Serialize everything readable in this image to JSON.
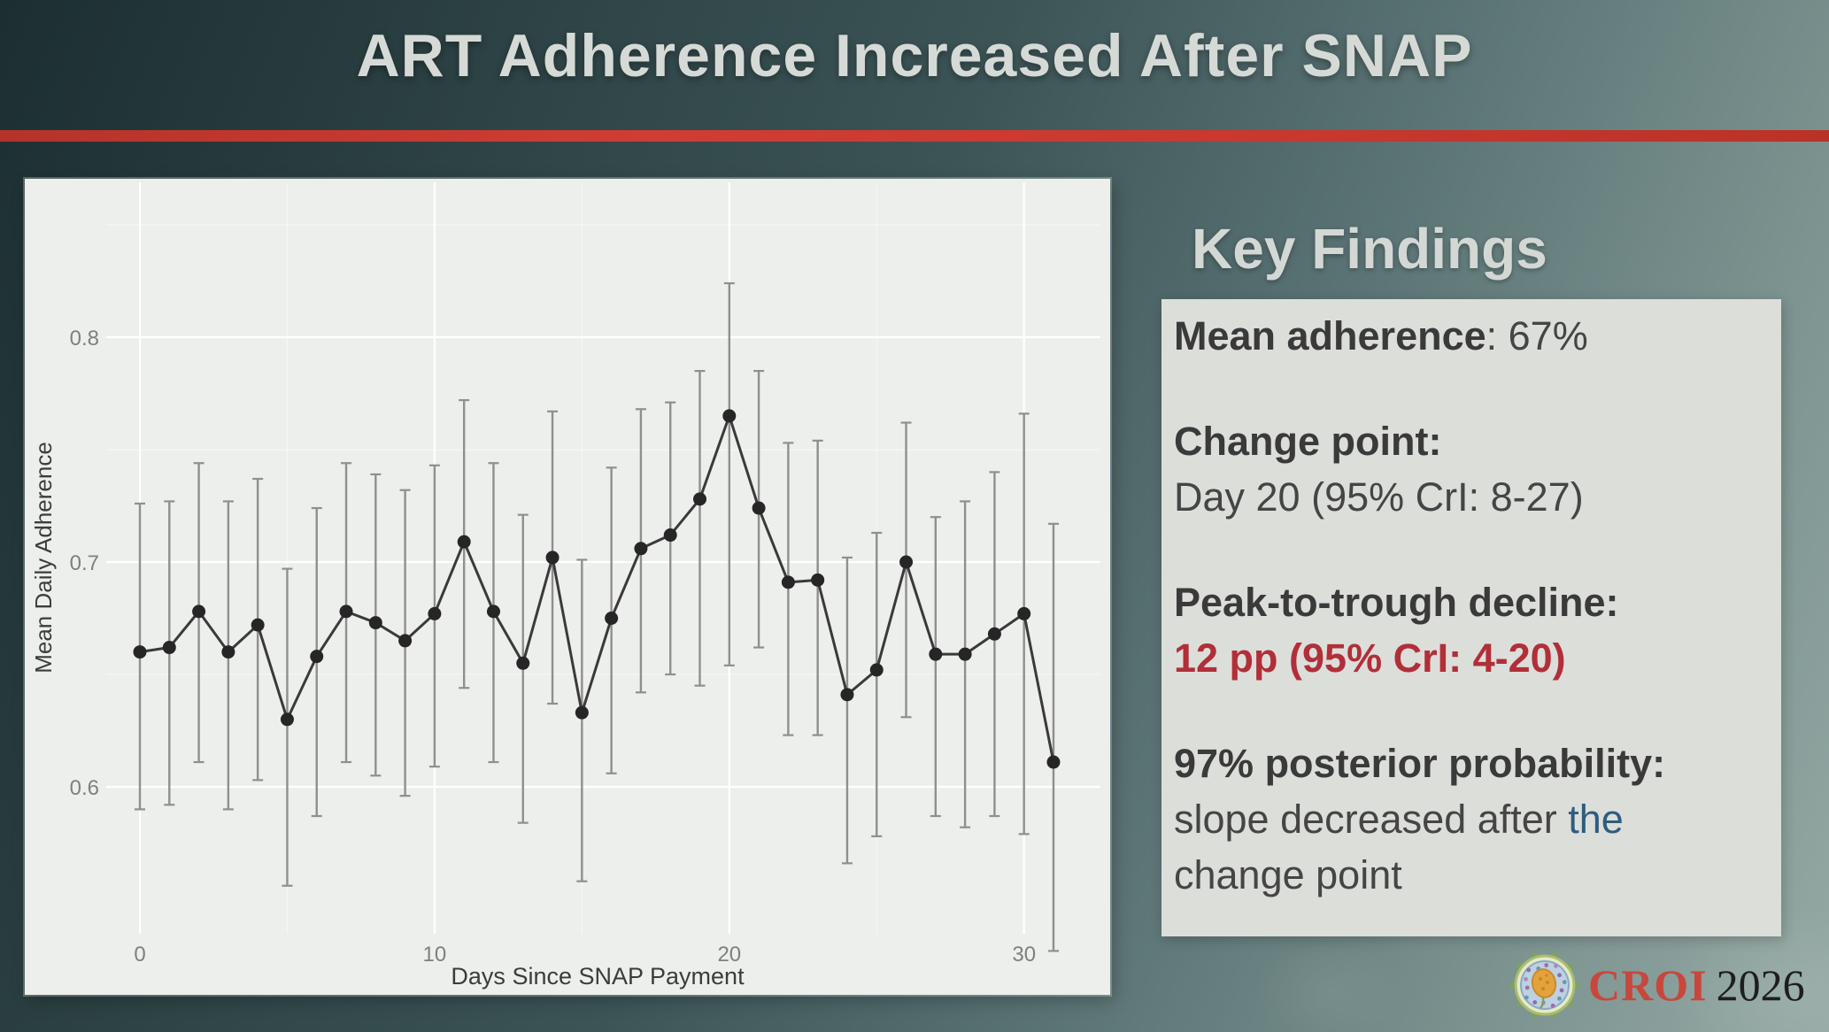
{
  "slide": {
    "title": "ART Adherence Increased After SNAP"
  },
  "chart_data": {
    "type": "line",
    "title": "",
    "xlabel": "Days Since SNAP Payment",
    "ylabel": "Mean Daily Adherence",
    "x": [
      0,
      1,
      2,
      3,
      4,
      5,
      6,
      7,
      8,
      9,
      10,
      11,
      12,
      13,
      14,
      15,
      16,
      17,
      18,
      19,
      20,
      21,
      22,
      23,
      24,
      25,
      26,
      27,
      28,
      29,
      30,
      31
    ],
    "series": [
      {
        "name": "Mean daily adherence",
        "values": [
          0.66,
          0.662,
          0.678,
          0.66,
          0.672,
          0.63,
          0.658,
          0.678,
          0.673,
          0.665,
          0.677,
          0.709,
          0.678,
          0.655,
          0.702,
          0.633,
          0.675,
          0.706,
          0.712,
          0.728,
          0.765,
          0.724,
          0.691,
          0.692,
          0.641,
          0.652,
          0.7,
          0.659,
          0.659,
          0.668,
          0.677,
          0.611
        ]
      }
    ],
    "error_low": [
      0.59,
      0.592,
      0.611,
      0.59,
      0.603,
      0.556,
      0.587,
      0.611,
      0.605,
      0.596,
      0.609,
      0.644,
      0.611,
      0.584,
      0.637,
      0.558,
      0.606,
      0.642,
      0.65,
      0.645,
      0.654,
      0.662,
      0.623,
      0.623,
      0.566,
      0.578,
      0.631,
      0.587,
      0.582,
      0.587,
      0.579,
      0.527
    ],
    "error_high": [
      0.726,
      0.727,
      0.744,
      0.727,
      0.737,
      0.697,
      0.724,
      0.744,
      0.739,
      0.732,
      0.743,
      0.772,
      0.744,
      0.721,
      0.767,
      0.701,
      0.742,
      0.768,
      0.771,
      0.785,
      0.824,
      0.785,
      0.753,
      0.754,
      0.702,
      0.713,
      0.762,
      0.72,
      0.727,
      0.74,
      0.766,
      0.717
    ],
    "x_ticks": [
      0,
      10,
      20,
      30
    ],
    "y_ticks": [
      0.6,
      0.7,
      0.8
    ],
    "y_tick_labels": [
      "0.6",
      "0.7",
      "0.8"
    ],
    "ylim": [
      0.52,
      0.87
    ],
    "grid": true,
    "legend": "none",
    "colors": {
      "panel": "#edefec",
      "grid_major": "#ffffff",
      "grid_minor": "#f7f8f5",
      "error_bar": "#8f8f8f",
      "point": "#262626",
      "line": "#3a3a3a",
      "tick_label": "#7f7f7f",
      "axis_title": "#3c3c3c"
    }
  },
  "key_findings": {
    "heading": "Key Findings",
    "paragraphs": [
      {
        "lines": [
          [
            {
              "t": "Mean adherence",
              "s": "b"
            },
            {
              "t": ": 67%",
              "s": "n"
            }
          ]
        ]
      },
      {
        "lines": [
          [
            {
              "t": "Change point:",
              "s": "b"
            }
          ],
          [
            {
              "t": "Day 20 (95% CrI: 8-27)",
              "s": "n"
            }
          ]
        ]
      },
      {
        "lines": [
          [
            {
              "t": "Peak-to-trough decline:",
              "s": "b"
            }
          ],
          [
            {
              "t": "12 pp (95% CrI: 4-20)",
              "s": "rb"
            }
          ]
        ]
      },
      {
        "lines": [
          [
            {
              "t": "97% posterior probability:",
              "s": "b"
            }
          ],
          [
            {
              "t": "slope decreased after ",
              "s": "n"
            },
            {
              "t": "the",
              "s": "bl"
            }
          ],
          [
            {
              "t": "change point",
              "s": "n"
            }
          ]
        ]
      }
    ],
    "accent_red": "#b12f38",
    "accent_blue": "#2d5d80"
  },
  "footer": {
    "conference": "CROI",
    "year": "2026",
    "logo": "hiv-virion-icon"
  },
  "theme": {
    "title_color": "#d6dad7",
    "divider_red": "#c9382f",
    "background_teal_dark": "#1c2e30",
    "background_teal_light": "#95a9a4",
    "findings_box_bg": "#dcdeda"
  }
}
